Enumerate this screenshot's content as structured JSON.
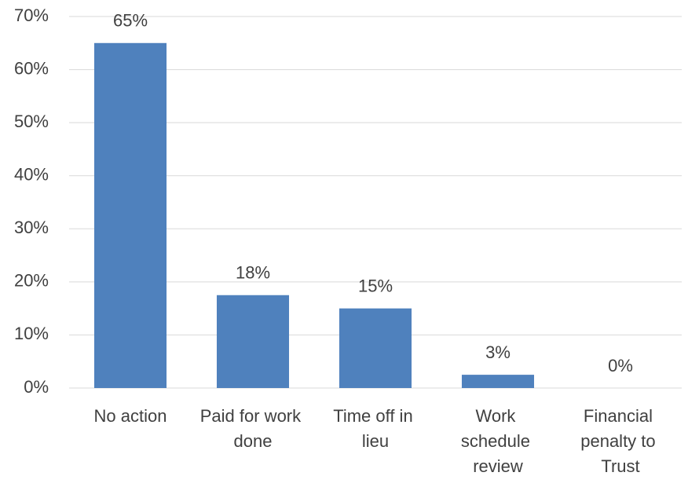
{
  "chart_data": {
    "type": "bar",
    "categories": [
      "No action",
      "Paid for work done",
      "Time off in lieu",
      "Work schedule review",
      "Financial penalty to Trust"
    ],
    "values": [
      65,
      17.5,
      15,
      2.5,
      0
    ],
    "value_labels": [
      "65%",
      "18%",
      "15%",
      "3%",
      "0%"
    ],
    "color": "#4f81bd",
    "ylim": [
      0,
      70
    ],
    "yticks": [
      {
        "value": 0,
        "label": "0%"
      },
      {
        "value": 10,
        "label": "10%"
      },
      {
        "value": 20,
        "label": "20%"
      },
      {
        "value": 30,
        "label": "30%"
      },
      {
        "value": 40,
        "label": "40%"
      },
      {
        "value": 50,
        "label": "50%"
      },
      {
        "value": 60,
        "label": "60%"
      },
      {
        "value": 70,
        "label": "70%"
      }
    ],
    "grid": true
  }
}
